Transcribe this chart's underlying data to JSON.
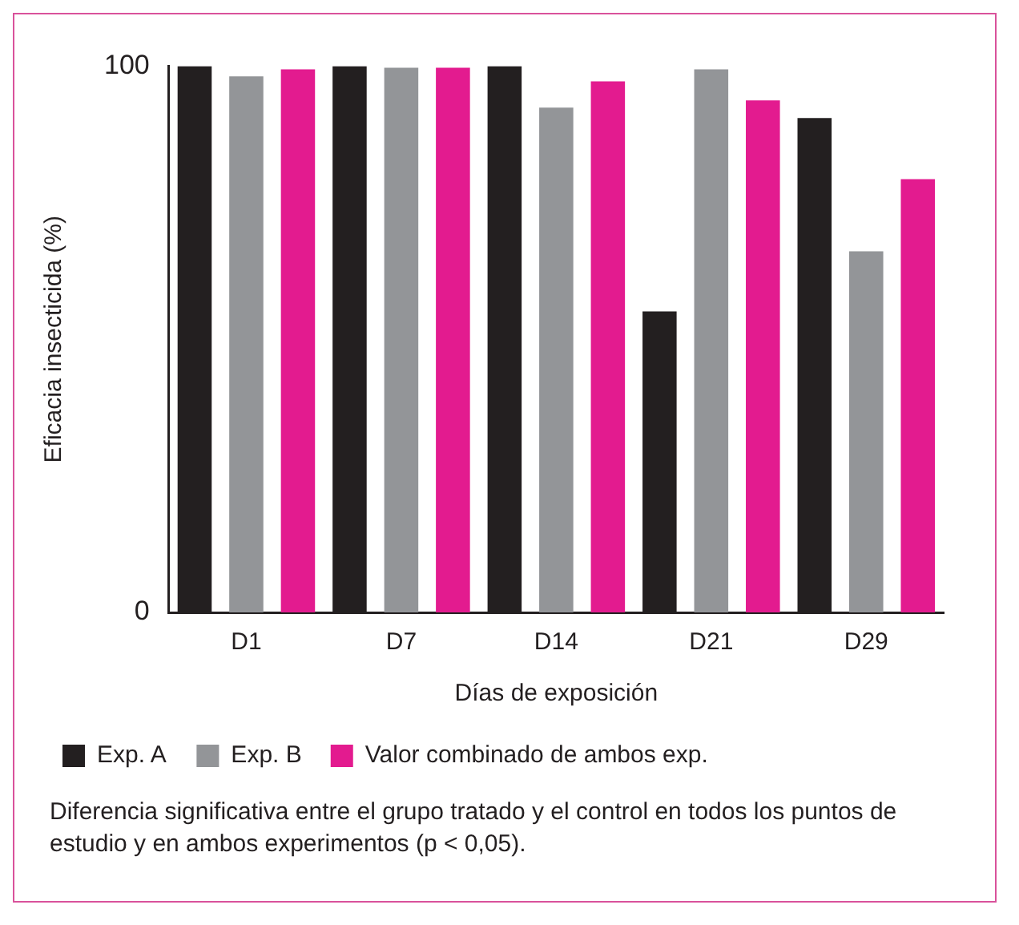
{
  "chart_data": {
    "type": "bar",
    "categories": [
      "D1",
      "D7",
      "D14",
      "D21",
      "D29"
    ],
    "series": [
      {
        "name": "Exp. A",
        "color": "#231f20",
        "values": [
          100,
          100,
          100,
          55.1,
          90.5
        ]
      },
      {
        "name": "Exp. B",
        "color": "#939598",
        "values": [
          98.1,
          99.7,
          92.4,
          99.4,
          66.1
        ]
      },
      {
        "name": "Valor combinado de ambos exp.",
        "color": "#e31b8f",
        "values": [
          99.4,
          99.7,
          97.2,
          93.7,
          79.3
        ]
      }
    ],
    "xlabel": "Días de exposición",
    "ylabel": "Eficacia insecticida (%)",
    "ylim": [
      0,
      100
    ],
    "yticks": [
      0,
      100
    ],
    "grid": false,
    "legend": "bottom",
    "annotations": [
      "Diferencia significativa entre el grupo tratado y el control en todos los puntos de estudio y en ambos experimentos (p < 0,05)."
    ]
  }
}
